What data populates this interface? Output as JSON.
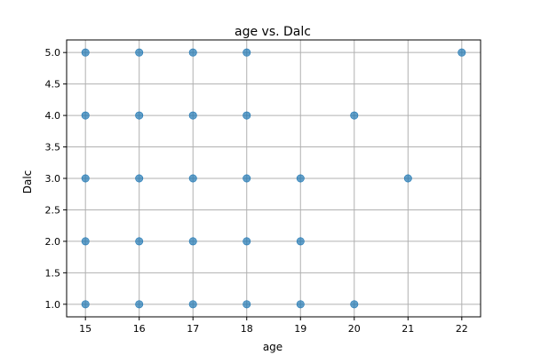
{
  "chart_data": {
    "type": "scatter",
    "title": "age vs. Dalc",
    "xlabel": "age",
    "ylabel": "Dalc",
    "xlim": [
      14.65,
      22.35
    ],
    "ylim": [
      0.8,
      5.2
    ],
    "xticks": [
      15,
      16,
      17,
      18,
      19,
      20,
      21,
      22
    ],
    "xtick_labels": [
      "15",
      "16",
      "17",
      "18",
      "19",
      "20",
      "21",
      "22"
    ],
    "yticks": [
      1.0,
      1.5,
      2.0,
      2.5,
      3.0,
      3.5,
      4.0,
      4.5,
      5.0
    ],
    "ytick_labels": [
      "1.0",
      "1.5",
      "2.0",
      "2.5",
      "3.0",
      "3.5",
      "4.0",
      "4.5",
      "5.0"
    ],
    "grid": true,
    "marker_color": "#1f77b4",
    "points": [
      {
        "x": 15,
        "y": 1
      },
      {
        "x": 15,
        "y": 2
      },
      {
        "x": 15,
        "y": 3
      },
      {
        "x": 15,
        "y": 4
      },
      {
        "x": 15,
        "y": 5
      },
      {
        "x": 16,
        "y": 1
      },
      {
        "x": 16,
        "y": 2
      },
      {
        "x": 16,
        "y": 3
      },
      {
        "x": 16,
        "y": 4
      },
      {
        "x": 16,
        "y": 5
      },
      {
        "x": 17,
        "y": 1
      },
      {
        "x": 17,
        "y": 2
      },
      {
        "x": 17,
        "y": 3
      },
      {
        "x": 17,
        "y": 4
      },
      {
        "x": 17,
        "y": 5
      },
      {
        "x": 18,
        "y": 1
      },
      {
        "x": 18,
        "y": 2
      },
      {
        "x": 18,
        "y": 3
      },
      {
        "x": 18,
        "y": 4
      },
      {
        "x": 18,
        "y": 5
      },
      {
        "x": 19,
        "y": 1
      },
      {
        "x": 19,
        "y": 2
      },
      {
        "x": 19,
        "y": 3
      },
      {
        "x": 20,
        "y": 1
      },
      {
        "x": 20,
        "y": 4
      },
      {
        "x": 21,
        "y": 3
      },
      {
        "x": 22,
        "y": 5
      }
    ]
  }
}
